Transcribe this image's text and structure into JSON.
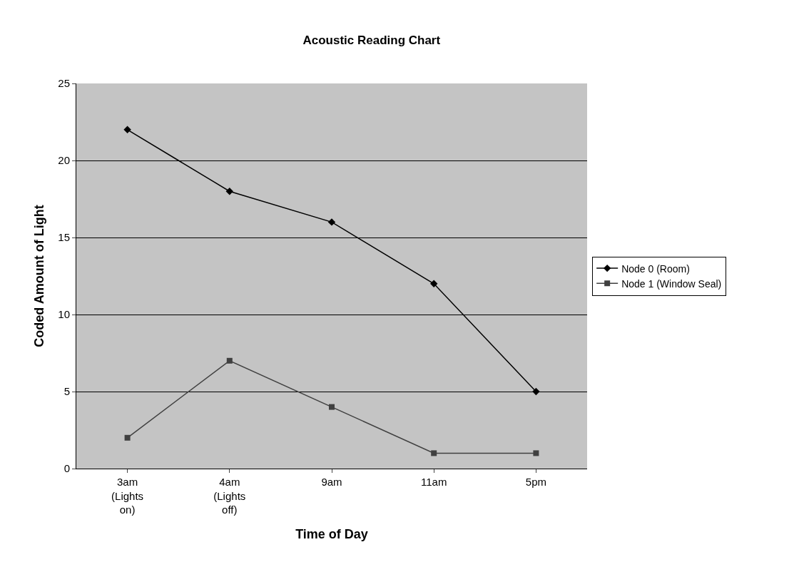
{
  "chart_data": {
    "type": "line",
    "title": "Acoustic Reading Chart",
    "xlabel": "Time of Day",
    "ylabel": "Coded Amount of Light",
    "categories": [
      "3am (Lights on)",
      "4am (Lights off)",
      "9am",
      "11am",
      "5pm"
    ],
    "series": [
      {
        "name": "Node 0 (Room)",
        "color": "#000000",
        "marker": "diamond",
        "values": [
          22,
          18,
          16,
          12,
          5
        ]
      },
      {
        "name": "Node 1 (Window Seal)",
        "color": "#404040",
        "marker": "square",
        "values": [
          2,
          7,
          4,
          1,
          1
        ]
      }
    ],
    "ylim": [
      0,
      25
    ],
    "yticks": [
      0,
      5,
      10,
      15,
      20,
      25
    ],
    "grid": "y",
    "legend": "right",
    "line_style": "solid"
  }
}
